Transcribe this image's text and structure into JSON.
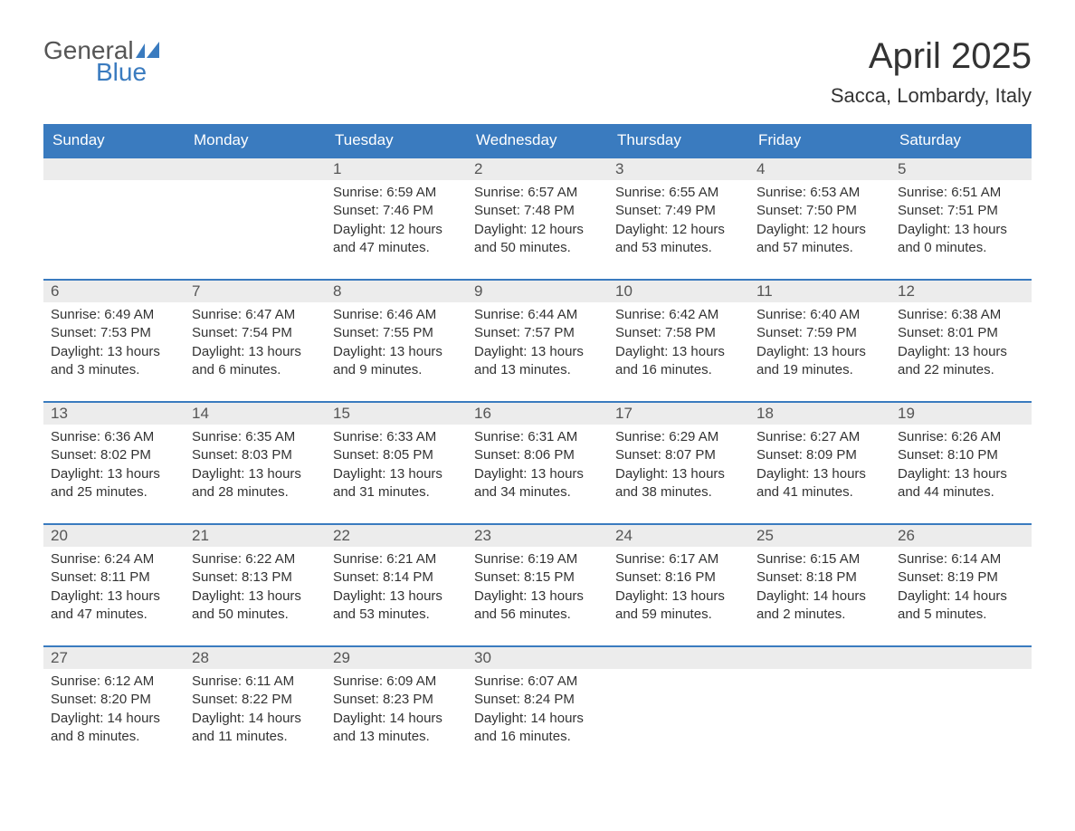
{
  "brand": {
    "name1": "General",
    "name2": "Blue"
  },
  "title": "April 2025",
  "location": "Sacca, Lombardy, Italy",
  "colors": {
    "header_bg": "#3a7bbf",
    "header_text": "#ffffff",
    "daynum_bg": "#ececec",
    "border_top": "#3a7bbf",
    "body_text": "#333333",
    "logo_accent": "#3a7bbf"
  },
  "weekdays": [
    "Sunday",
    "Monday",
    "Tuesday",
    "Wednesday",
    "Thursday",
    "Friday",
    "Saturday"
  ],
  "weeks": [
    [
      null,
      null,
      {
        "n": "1",
        "sunrise": "6:59 AM",
        "sunset": "7:46 PM",
        "daylight": "12 hours and 47 minutes."
      },
      {
        "n": "2",
        "sunrise": "6:57 AM",
        "sunset": "7:48 PM",
        "daylight": "12 hours and 50 minutes."
      },
      {
        "n": "3",
        "sunrise": "6:55 AM",
        "sunset": "7:49 PM",
        "daylight": "12 hours and 53 minutes."
      },
      {
        "n": "4",
        "sunrise": "6:53 AM",
        "sunset": "7:50 PM",
        "daylight": "12 hours and 57 minutes."
      },
      {
        "n": "5",
        "sunrise": "6:51 AM",
        "sunset": "7:51 PM",
        "daylight": "13 hours and 0 minutes."
      }
    ],
    [
      {
        "n": "6",
        "sunrise": "6:49 AM",
        "sunset": "7:53 PM",
        "daylight": "13 hours and 3 minutes."
      },
      {
        "n": "7",
        "sunrise": "6:47 AM",
        "sunset": "7:54 PM",
        "daylight": "13 hours and 6 minutes."
      },
      {
        "n": "8",
        "sunrise": "6:46 AM",
        "sunset": "7:55 PM",
        "daylight": "13 hours and 9 minutes."
      },
      {
        "n": "9",
        "sunrise": "6:44 AM",
        "sunset": "7:57 PM",
        "daylight": "13 hours and 13 minutes."
      },
      {
        "n": "10",
        "sunrise": "6:42 AM",
        "sunset": "7:58 PM",
        "daylight": "13 hours and 16 minutes."
      },
      {
        "n": "11",
        "sunrise": "6:40 AM",
        "sunset": "7:59 PM",
        "daylight": "13 hours and 19 minutes."
      },
      {
        "n": "12",
        "sunrise": "6:38 AM",
        "sunset": "8:01 PM",
        "daylight": "13 hours and 22 minutes."
      }
    ],
    [
      {
        "n": "13",
        "sunrise": "6:36 AM",
        "sunset": "8:02 PM",
        "daylight": "13 hours and 25 minutes."
      },
      {
        "n": "14",
        "sunrise": "6:35 AM",
        "sunset": "8:03 PM",
        "daylight": "13 hours and 28 minutes."
      },
      {
        "n": "15",
        "sunrise": "6:33 AM",
        "sunset": "8:05 PM",
        "daylight": "13 hours and 31 minutes."
      },
      {
        "n": "16",
        "sunrise": "6:31 AM",
        "sunset": "8:06 PM",
        "daylight": "13 hours and 34 minutes."
      },
      {
        "n": "17",
        "sunrise": "6:29 AM",
        "sunset": "8:07 PM",
        "daylight": "13 hours and 38 minutes."
      },
      {
        "n": "18",
        "sunrise": "6:27 AM",
        "sunset": "8:09 PM",
        "daylight": "13 hours and 41 minutes."
      },
      {
        "n": "19",
        "sunrise": "6:26 AM",
        "sunset": "8:10 PM",
        "daylight": "13 hours and 44 minutes."
      }
    ],
    [
      {
        "n": "20",
        "sunrise": "6:24 AM",
        "sunset": "8:11 PM",
        "daylight": "13 hours and 47 minutes."
      },
      {
        "n": "21",
        "sunrise": "6:22 AM",
        "sunset": "8:13 PM",
        "daylight": "13 hours and 50 minutes."
      },
      {
        "n": "22",
        "sunrise": "6:21 AM",
        "sunset": "8:14 PM",
        "daylight": "13 hours and 53 minutes."
      },
      {
        "n": "23",
        "sunrise": "6:19 AM",
        "sunset": "8:15 PM",
        "daylight": "13 hours and 56 minutes."
      },
      {
        "n": "24",
        "sunrise": "6:17 AM",
        "sunset": "8:16 PM",
        "daylight": "13 hours and 59 minutes."
      },
      {
        "n": "25",
        "sunrise": "6:15 AM",
        "sunset": "8:18 PM",
        "daylight": "14 hours and 2 minutes."
      },
      {
        "n": "26",
        "sunrise": "6:14 AM",
        "sunset": "8:19 PM",
        "daylight": "14 hours and 5 minutes."
      }
    ],
    [
      {
        "n": "27",
        "sunrise": "6:12 AM",
        "sunset": "8:20 PM",
        "daylight": "14 hours and 8 minutes."
      },
      {
        "n": "28",
        "sunrise": "6:11 AM",
        "sunset": "8:22 PM",
        "daylight": "14 hours and 11 minutes."
      },
      {
        "n": "29",
        "sunrise": "6:09 AM",
        "sunset": "8:23 PM",
        "daylight": "14 hours and 13 minutes."
      },
      {
        "n": "30",
        "sunrise": "6:07 AM",
        "sunset": "8:24 PM",
        "daylight": "14 hours and 16 minutes."
      },
      null,
      null,
      null
    ]
  ],
  "labels": {
    "sunrise": "Sunrise:",
    "sunset": "Sunset:",
    "daylight": "Daylight:"
  }
}
